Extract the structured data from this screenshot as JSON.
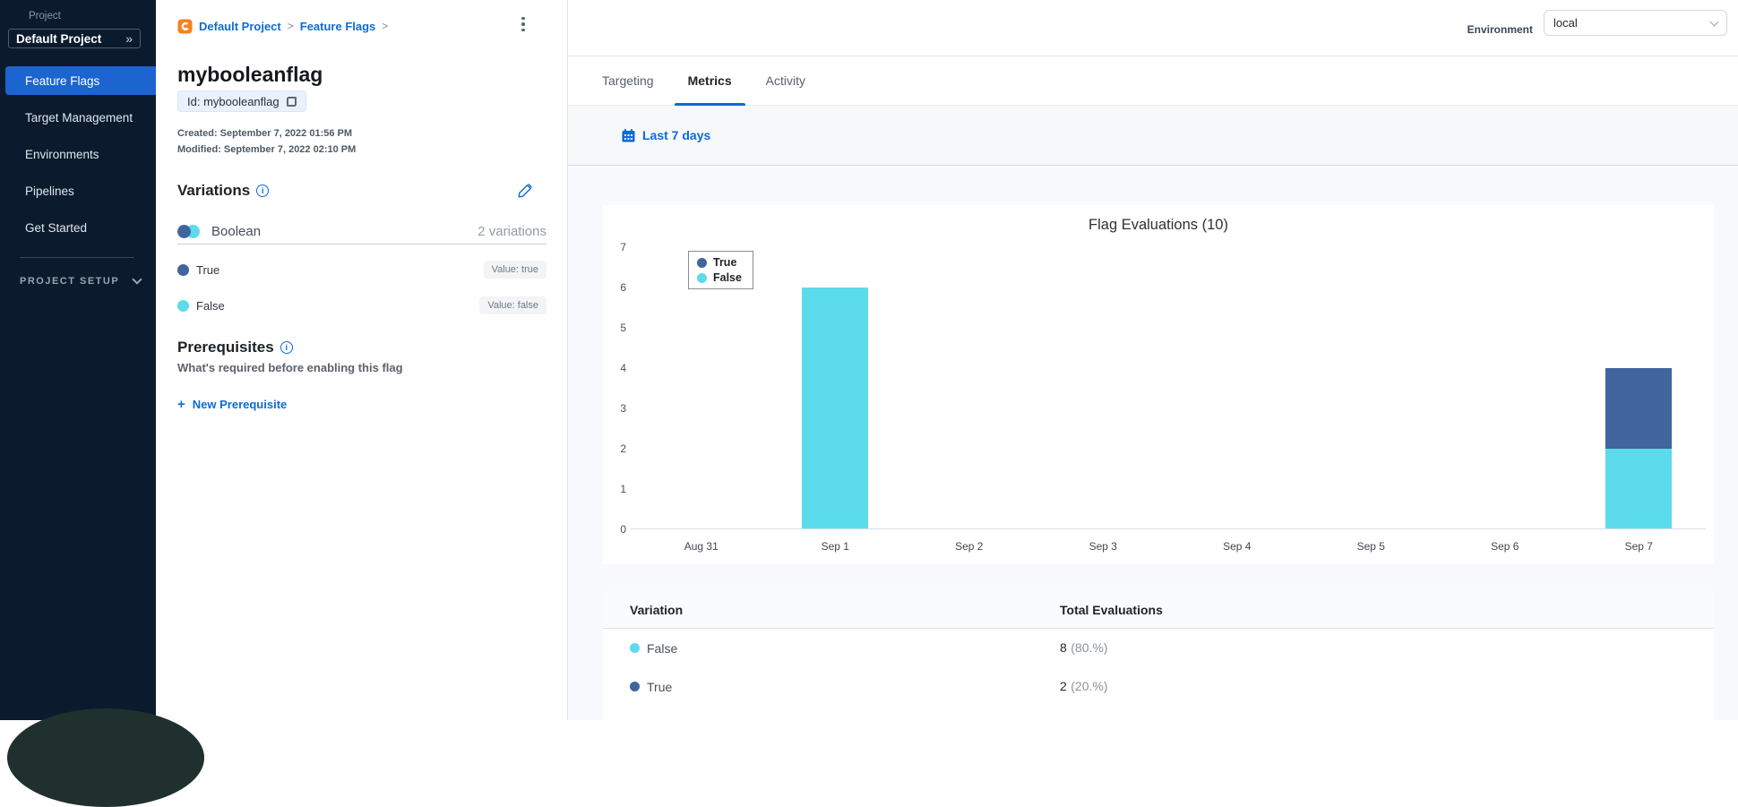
{
  "sidebar": {
    "project_label": "Project",
    "project_name": "Default Project",
    "expand_icon": "»",
    "items": [
      {
        "label": "Feature Flags"
      },
      {
        "label": "Target Management"
      },
      {
        "label": "Environments"
      },
      {
        "label": "Pipelines"
      },
      {
        "label": "Get Started"
      }
    ],
    "setup_label": "PROJECT SETUP"
  },
  "breadcrumb": {
    "items": [
      "Default Project",
      "Feature Flags"
    ],
    "separator": ">"
  },
  "flag": {
    "title": "mybooleanflag",
    "id_chip": "Id: mybooleanflag",
    "created": "Created: September 7, 2022 01:56 PM",
    "modified": "Modified: September 7, 2022 02:10 PM"
  },
  "variations": {
    "title": "Variations",
    "kind": "Boolean",
    "count": "2 variations",
    "items": [
      {
        "name": "True",
        "value": "Value: true",
        "color": "#41659d"
      },
      {
        "name": "False",
        "value": "Value: false",
        "color": "#5cdbec"
      }
    ]
  },
  "prerequisites": {
    "title": "Prerequisites",
    "subtitle": "What's required before enabling this flag",
    "new_button": "New Prerequisite",
    "plus": "+"
  },
  "header": {
    "environment_label": "Environment",
    "environment_value": "local"
  },
  "tabs": [
    {
      "label": "Targeting"
    },
    {
      "label": "Metrics"
    },
    {
      "label": "Activity"
    }
  ],
  "toolbar": {
    "date_range": "Last 7 days"
  },
  "chart_data": {
    "type": "bar",
    "stacked": true,
    "title": "Flag Evaluations (10)",
    "categories": [
      "Aug 31",
      "Sep 1",
      "Sep 2",
      "Sep 3",
      "Sep 4",
      "Sep 5",
      "Sep 6",
      "Sep 7"
    ],
    "series": [
      {
        "name": "True",
        "color": "#41659d",
        "values": [
          0,
          0,
          0,
          0,
          0,
          0,
          0,
          2
        ]
      },
      {
        "name": "False",
        "color": "#5cdbec",
        "values": [
          0,
          6,
          0,
          0,
          0,
          0,
          0,
          2
        ]
      }
    ],
    "xlabel": "",
    "ylabel": "",
    "ylim": [
      0,
      7
    ],
    "yticks": [
      0,
      1,
      2,
      3,
      4,
      5,
      6,
      7
    ],
    "grid": false,
    "legend_position": "top-left"
  },
  "table": {
    "columns": [
      "Variation",
      "Total Evaluations"
    ],
    "rows": [
      {
        "variation": "False",
        "color": "#5cdbec",
        "total": "8",
        "pct": "(80.%)"
      },
      {
        "variation": "True",
        "color": "#41659d",
        "total": "2",
        "pct": "(20.%)"
      }
    ]
  },
  "info_glyph": "i"
}
